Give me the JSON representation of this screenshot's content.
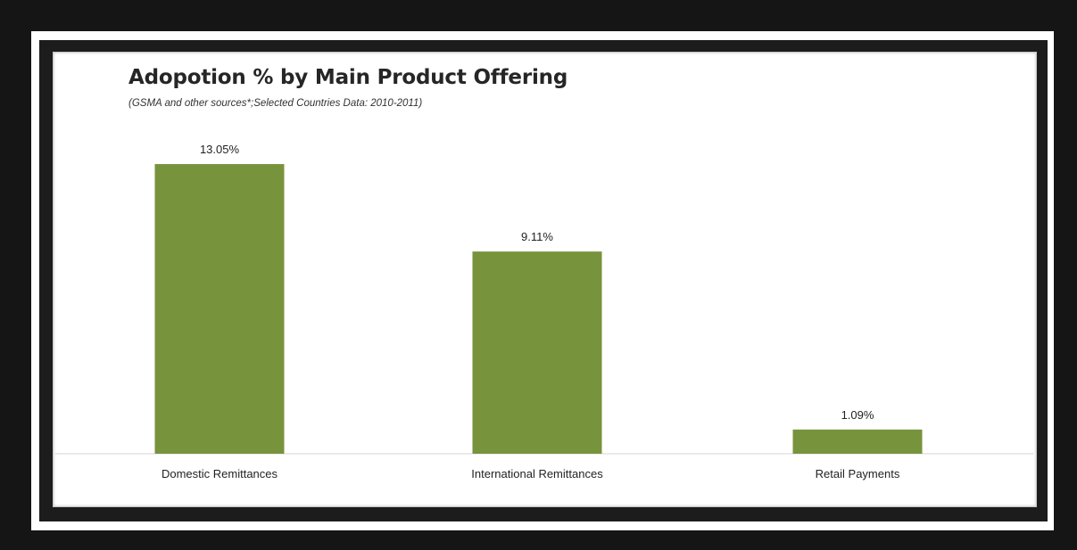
{
  "chart_data": {
    "type": "bar",
    "title": "Adopotion % by Main Product Offering",
    "subtitle": "(GSMA and other sources*;Selected Countries Data: 2010-2011)",
    "categories": [
      "Domestic Remittances",
      "International Remittances",
      "Retail Payments"
    ],
    "values": [
      13.05,
      9.11,
      1.09
    ],
    "data_labels": [
      "13.05%",
      "9.11%",
      "1.09%"
    ],
    "xlabel": "",
    "ylabel": "",
    "ylim": [
      0,
      14
    ],
    "grid": false,
    "legend": "none",
    "colors": {
      "bar": "#77933c",
      "background": "#ffffff",
      "frame": "#151515"
    }
  }
}
